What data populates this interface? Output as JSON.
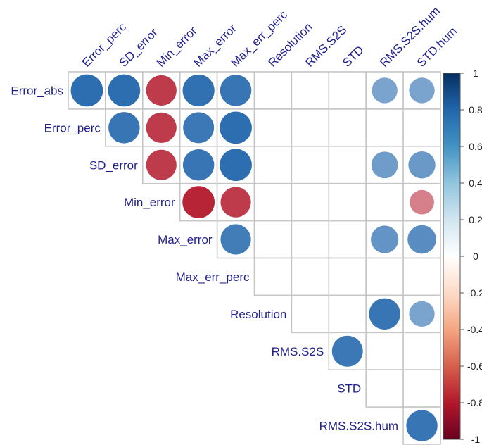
{
  "chart_data": {
    "type": "heatmap",
    "subtype": "correlation-circles-upper-triangle",
    "rows": [
      "Error_abs",
      "Error_perc",
      "SD_error",
      "Min_error",
      "Max_error",
      "Max_err_perc",
      "Resolution",
      "RMS.S2S",
      "STD",
      "RMS.S2S.hum"
    ],
    "columns": [
      "Error_perc",
      "SD_error",
      "Min_error",
      "Max_error",
      "Max_err_perc",
      "Resolution",
      "RMS.S2S",
      "STD",
      "RMS.S2S.hum",
      "STD.hum"
    ],
    "cells": [
      {
        "row": 0,
        "col": 0,
        "value": 0.95
      },
      {
        "row": 0,
        "col": 1,
        "value": 0.95
      },
      {
        "row": 0,
        "col": 2,
        "value": -0.85
      },
      {
        "row": 0,
        "col": 3,
        "value": 0.93
      },
      {
        "row": 0,
        "col": 4,
        "value": 0.9
      },
      {
        "row": 0,
        "col": 8,
        "value": 0.6
      },
      {
        "row": 0,
        "col": 9,
        "value": 0.6
      },
      {
        "row": 1,
        "col": 1,
        "value": 0.9
      },
      {
        "row": 1,
        "col": 2,
        "value": -0.85
      },
      {
        "row": 1,
        "col": 3,
        "value": 0.88
      },
      {
        "row": 1,
        "col": 4,
        "value": 0.95
      },
      {
        "row": 2,
        "col": 2,
        "value": -0.85
      },
      {
        "row": 2,
        "col": 3,
        "value": 0.9
      },
      {
        "row": 2,
        "col": 4,
        "value": 0.95
      },
      {
        "row": 2,
        "col": 8,
        "value": 0.65
      },
      {
        "row": 2,
        "col": 9,
        "value": 0.67
      },
      {
        "row": 3,
        "col": 3,
        "value": -0.95
      },
      {
        "row": 3,
        "col": 4,
        "value": -0.85
      },
      {
        "row": 3,
        "col": 9,
        "value": -0.55
      },
      {
        "row": 4,
        "col": 4,
        "value": 0.85
      },
      {
        "row": 4,
        "col": 8,
        "value": 0.7
      },
      {
        "row": 4,
        "col": 9,
        "value": 0.75
      },
      {
        "row": 6,
        "col": 8,
        "value": 0.9
      },
      {
        "row": 6,
        "col": 9,
        "value": 0.6
      },
      {
        "row": 7,
        "col": 7,
        "value": 0.88
      },
      {
        "row": 9,
        "col": 9,
        "value": 0.9
      }
    ],
    "colorbar": {
      "range": [
        -1,
        1
      ],
      "ticks": [
        "1",
        "0.8",
        "0.6",
        "0.4",
        "0.2",
        "0",
        "-0.2",
        "-0.4",
        "-0.6",
        "-0.8",
        "-1"
      ],
      "low_color": "#b2182b",
      "mid_color": "#ffffff",
      "high_color": "#2166ac"
    },
    "grid_color": "#c6c6c6",
    "label_color": "#1f1f8f"
  }
}
